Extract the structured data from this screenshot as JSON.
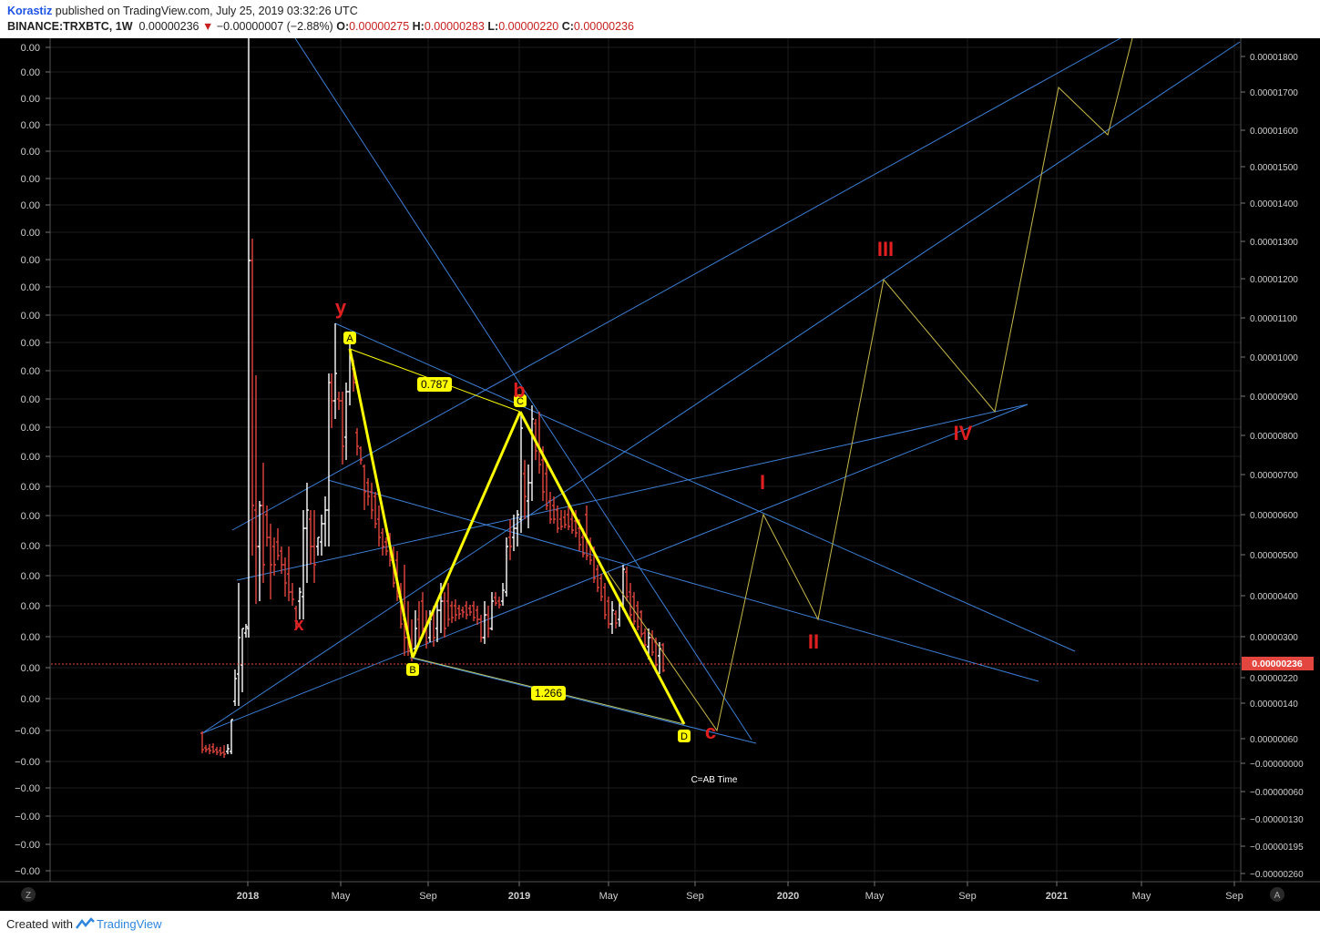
{
  "header": {
    "author": "Korastiz",
    "published_text": " published on TradingView.com, July 25, 2019 03:32:26 UTC",
    "symbol": "BINANCE:TRXBTC, 1W",
    "last": "0.00000236",
    "change": "−0.00000007 (−2.88%)",
    "o_label": "O:",
    "o_value": "0.00000275",
    "h_label": "H:",
    "h_value": "0.00000283",
    "l_label": "L:",
    "l_value": "0.00000220",
    "c_label": "C:",
    "c_value": "0.00000236"
  },
  "chart_data": {
    "type": "candlestick",
    "symbol": "TRXBTC",
    "interval": "1W",
    "left_axis_labels": [
      "0.00",
      "0.00",
      "0.00",
      "0.00",
      "0.00",
      "0.00",
      "0.00",
      "0.00",
      "0.00",
      "0.00",
      "0.00",
      "0.00",
      "0.00",
      "0.00",
      "0.00",
      "0.00",
      "0.00",
      "0.00",
      "0.00",
      "0.00",
      "0.00",
      "0.00",
      "0.00",
      "0.00",
      "−0.00",
      "−0.00",
      "−0.00",
      "−0.00",
      "−0.00",
      "−0.00"
    ],
    "right_axis_labels": [
      "0.00001800",
      "0.00001700",
      "0.00001600",
      "0.00001500",
      "0.00001400",
      "0.00001300",
      "0.00001200",
      "0.00001100",
      "0.00001000",
      "0.00000900",
      "0.00000800",
      "0.00000700",
      "0.00000600",
      "0.00000500",
      "0.00000400",
      "0.00000300",
      "0.00000220",
      "0.00000140",
      "0.00000060",
      "−0.00000000",
      "−0.00000060",
      "−0.00000130",
      "−0.00000195",
      "−0.00000260"
    ],
    "current_price_label": "0.00000236",
    "time_labels": [
      "2018",
      "May",
      "Sep",
      "2019",
      "May",
      "Sep",
      "2020",
      "May",
      "Sep",
      "2021",
      "May",
      "Sep"
    ],
    "bold_time_labels": [
      "2018",
      "2019",
      "2020",
      "2021"
    ],
    "pattern_points": [
      "A",
      "B",
      "C",
      "D"
    ],
    "ratio_labels": [
      "0.787",
      "1.266"
    ],
    "wave_labels": [
      "y",
      "x",
      "b",
      "c",
      "I",
      "II",
      "III",
      "IV"
    ],
    "note": "C=AB Time",
    "colors": {
      "background": "#000000",
      "bull_candle": "#ffffff",
      "bear_candle": "#e2463f",
      "trendline": "#3d7fd6",
      "pattern": "#ffff00",
      "projection": "#c8b84a",
      "wave_label": "#e02020",
      "grid": "#1c1c1c"
    }
  },
  "axis_buttons": {
    "left": "Z",
    "right": "A"
  },
  "footer": {
    "created_with": "Created with",
    "brand": "TradingView"
  }
}
